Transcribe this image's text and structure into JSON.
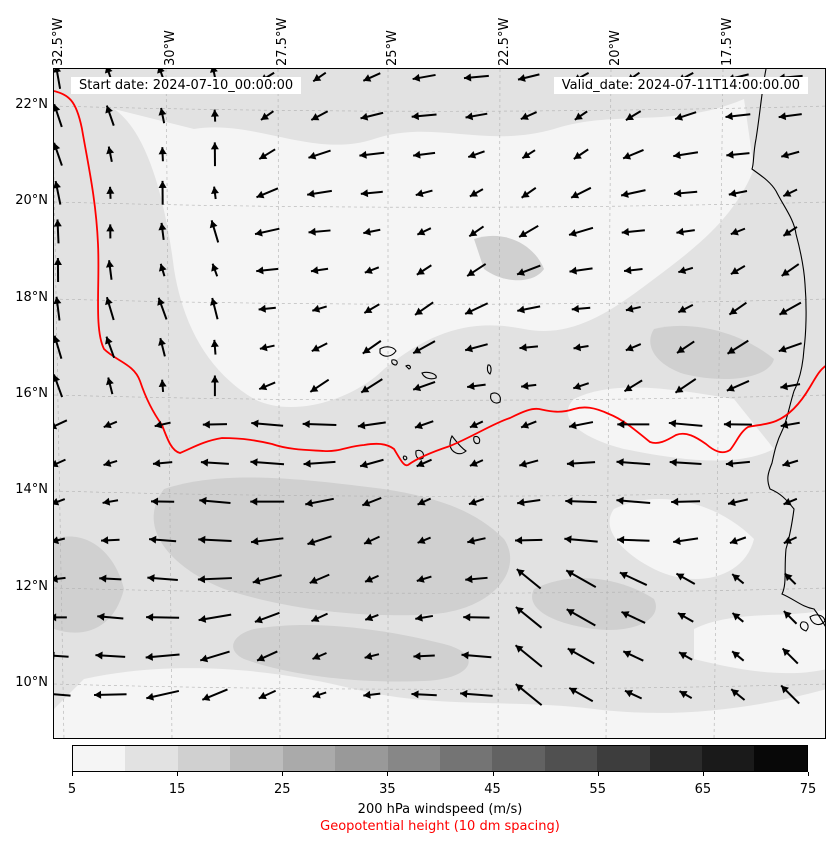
{
  "map": {
    "lon_labels": [
      "32.5°W",
      "30°W",
      "27.5°W",
      "25°W",
      "22.5°W",
      "20°W",
      "17.5°W"
    ],
    "lat_labels": [
      "22°N",
      "20°N",
      "18°N",
      "16°N",
      "14°N",
      "12°N",
      "10°N"
    ],
    "start_date": "Start date: 2024-07-10_00:00:00",
    "valid_date": "Valid_date: 2024-07-11T14:00:00.00",
    "contour_color": "#ff0000",
    "coast_color": "#000000",
    "arrow_color": "#000000"
  },
  "colorbar": {
    "ticks": [
      "5",
      "15",
      "25",
      "35",
      "45",
      "55",
      "65",
      "75"
    ],
    "colors": [
      "#f5f5f5",
      "#e2e2e2",
      "#d0d0d0",
      "#bdbdbd",
      "#aaaaaa",
      "#999999",
      "#878787",
      "#747474",
      "#626262",
      "#505050",
      "#3d3d3d",
      "#2b2b2b",
      "#1a1a1a",
      "#080808"
    ],
    "label": "200 hPa windspeed (m/s)",
    "sublabel": "Geopotential height (10 dm spacing)"
  }
}
